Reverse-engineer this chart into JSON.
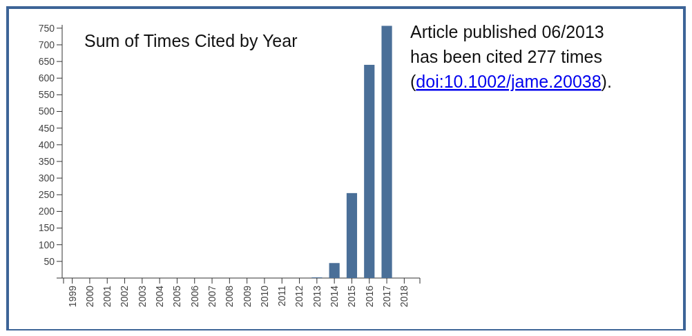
{
  "chart_data": {
    "type": "bar",
    "title": "Sum of Times Cited by Year",
    "categories": [
      "1999",
      "2000",
      "2001",
      "2002",
      "2003",
      "2004",
      "2005",
      "2006",
      "2007",
      "2008",
      "2009",
      "2010",
      "2011",
      "2012",
      "2013",
      "2014",
      "2015",
      "2016",
      "2017",
      "2018"
    ],
    "values": [
      0,
      0,
      0,
      0,
      0,
      0,
      0,
      0,
      0,
      0,
      0,
      0,
      0,
      0,
      2,
      45,
      255,
      640,
      757,
      null
    ],
    "color": "#4a6f98",
    "ylim": [
      0,
      760
    ],
    "yticks": [
      50,
      100,
      150,
      200,
      250,
      300,
      350,
      400,
      450,
      500,
      550,
      600,
      650,
      700,
      750
    ],
    "annotations": [
      "Article published 06/2013 has been cited 277 times",
      "(doi:10.1002/jame.20038)."
    ]
  }
}
